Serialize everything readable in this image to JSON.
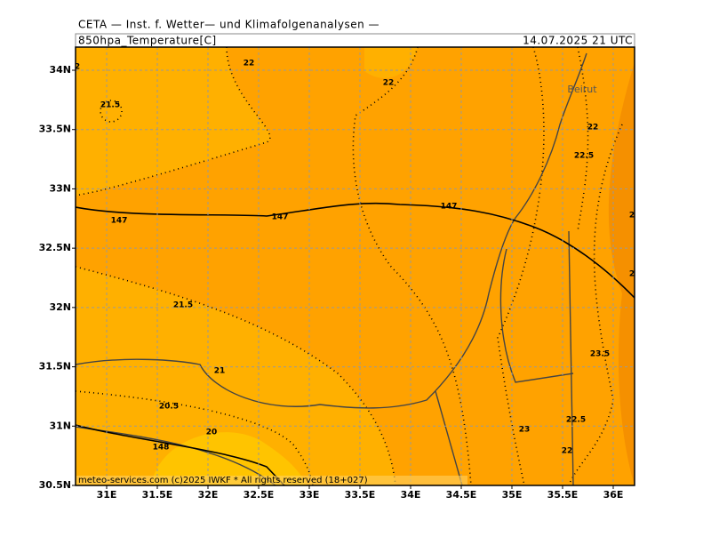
{
  "header": {
    "institute": "CETA — Inst. f. Wetter— und Klimafolgenanalysen —",
    "parameter": "850hpa_Temperature[C]",
    "valid_time": "14.07.2025 21 UTC"
  },
  "map": {
    "lon_ticks": [
      {
        "value": 31,
        "label": "31E"
      },
      {
        "value": 31.5,
        "label": "31.5E"
      },
      {
        "value": 32,
        "label": "32E"
      },
      {
        "value": 32.5,
        "label": "32.5E"
      },
      {
        "value": 33,
        "label": "33E"
      },
      {
        "value": 33.5,
        "label": "33.5E"
      },
      {
        "value": 34,
        "label": "34E"
      },
      {
        "value": 34.5,
        "label": "34.5E"
      },
      {
        "value": 35,
        "label": "35E"
      },
      {
        "value": 35.5,
        "label": "35.5E"
      },
      {
        "value": 36,
        "label": "36E"
      }
    ],
    "lat_ticks": [
      {
        "value": 30.5,
        "label": "30.5N"
      },
      {
        "value": 31,
        "label": "31N"
      },
      {
        "value": 31.5,
        "label": "31.5N"
      },
      {
        "value": 32,
        "label": "32N"
      },
      {
        "value": 32.5,
        "label": "32.5N"
      },
      {
        "value": 33,
        "label": "33N"
      },
      {
        "value": 33.5,
        "label": "33.5N"
      },
      {
        "value": 34,
        "label": "34N"
      }
    ],
    "city": "Beirut",
    "contour_labels": [
      "2",
      "22",
      "22",
      "21.5",
      "22",
      "22.5",
      "147",
      "147",
      "147",
      "21.5",
      "21",
      "20.5",
      "20",
      "148",
      "23.5",
      "22.5",
      "23",
      "22",
      "2",
      "2"
    ]
  },
  "footer": "meteo-services.com (c)2025 IWKF * All rights reserved (18+027)"
}
